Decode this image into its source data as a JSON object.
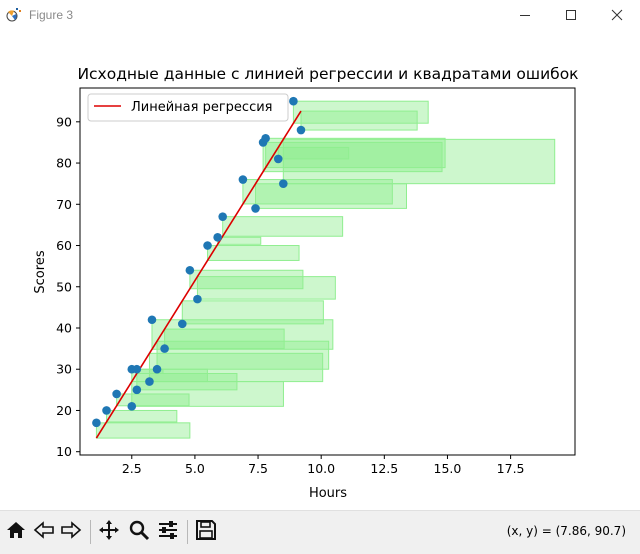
{
  "window": {
    "title": "Figure 3",
    "icons": [
      "matplotlib-icon",
      "minimize-icon",
      "maximize-icon",
      "close-icon"
    ]
  },
  "toolbar": {
    "buttons": [
      "home-icon",
      "back-icon",
      "forward-icon",
      "pan-icon",
      "zoom-icon",
      "configure-subplots-icon",
      "save-icon"
    ],
    "coord_text": "(x, y) = (7.86, 90.7)"
  },
  "chart_data": {
    "type": "scatter",
    "title": "Исходные данные с линией регрессии и квадратами ошибок",
    "xlabel": "Hours",
    "ylabel": "Scores",
    "xlim": [
      0.45,
      20.05
    ],
    "ylim": [
      9.2,
      98.2
    ],
    "xticks": [
      2.5,
      5.0,
      7.5,
      10.0,
      12.5,
      15.0,
      17.5
    ],
    "xtick_labels": [
      "2.5",
      "5.0",
      "7.5",
      "10.0",
      "12.5",
      "15.0",
      "17.5"
    ],
    "yticks": [
      10,
      20,
      30,
      40,
      50,
      60,
      70,
      80,
      90
    ],
    "ytick_labels": [
      "10",
      "20",
      "30",
      "40",
      "50",
      "60",
      "70",
      "80",
      "90"
    ],
    "grid": false,
    "legend": {
      "position": "top-left",
      "entries": [
        "Линейная регрессия"
      ]
    },
    "colors": {
      "points": "#1f77b4",
      "line": "#dd0000",
      "squares": "#90ee90"
    },
    "points": {
      "x": [
        1.1,
        1.5,
        1.9,
        2.5,
        2.5,
        2.7,
        2.7,
        3.2,
        3.3,
        3.5,
        3.8,
        4.5,
        4.8,
        5.1,
        5.5,
        5.9,
        6.1,
        6.9,
        7.4,
        7.7,
        7.8,
        8.3,
        8.5,
        8.9,
        9.2
      ],
      "y": [
        17,
        20,
        24,
        21,
        30,
        25,
        30,
        27,
        42,
        30,
        35,
        41,
        54,
        47,
        60,
        62,
        67,
        76,
        69,
        85,
        86,
        81,
        75,
        95,
        88
      ]
    },
    "regression_line": {
      "x": [
        1.1,
        9.2
      ],
      "y": [
        13.3,
        92.6
      ]
    }
  }
}
